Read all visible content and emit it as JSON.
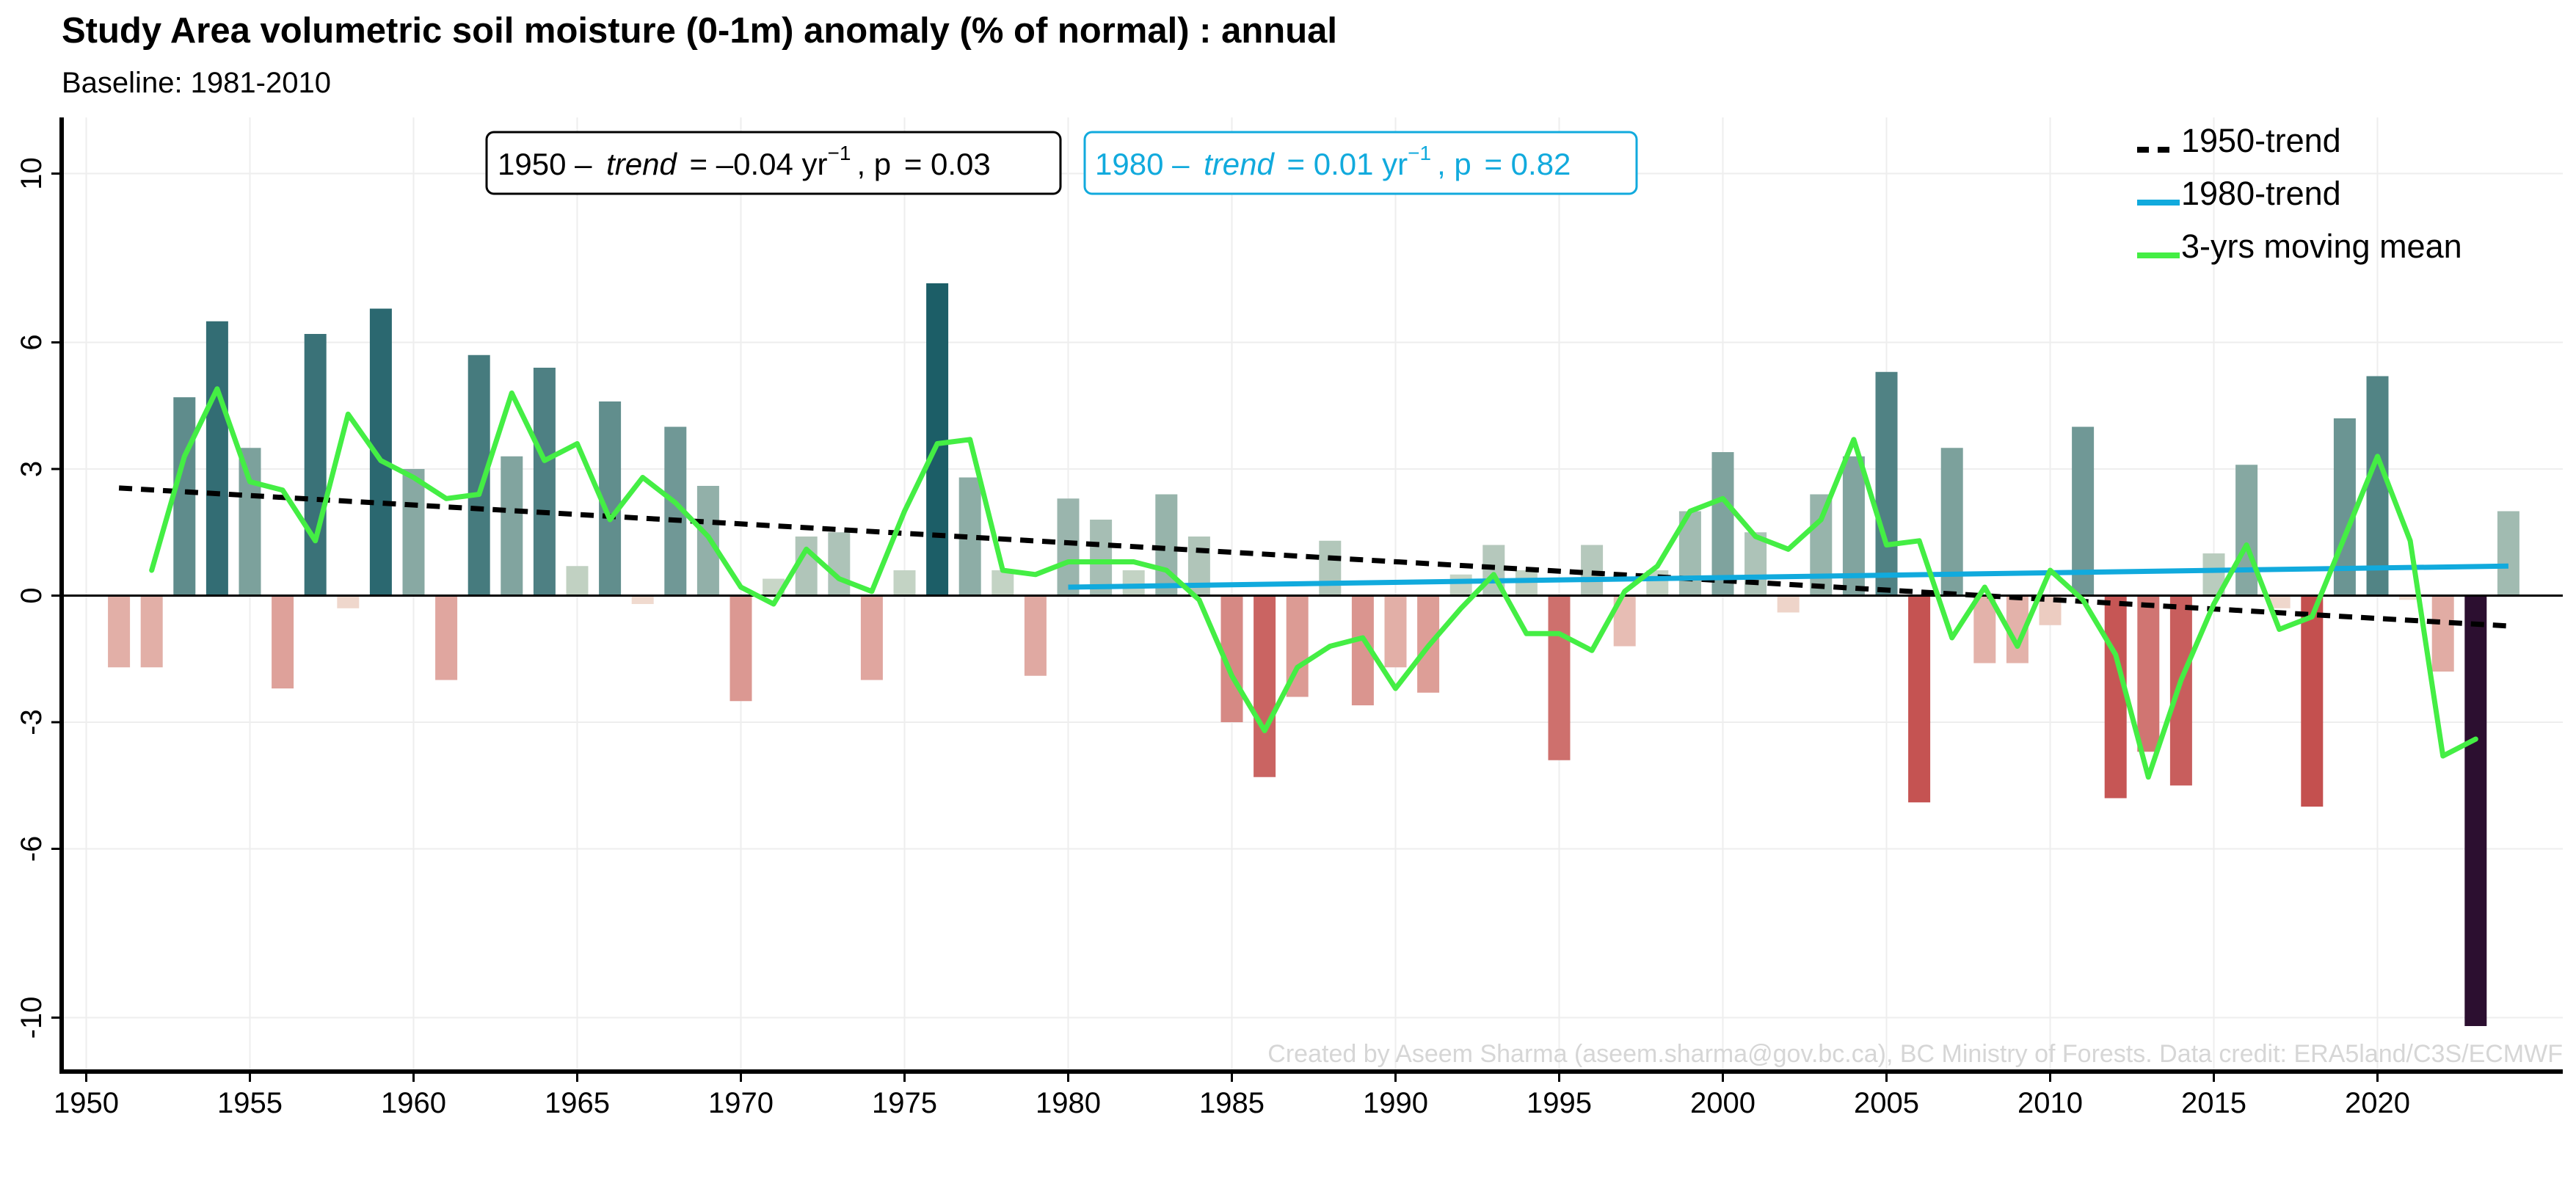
{
  "chart_data": {
    "type": "bar",
    "title": "Study Area volumetric soil moisture (0-1m) anomaly (% of normal) : annual",
    "subtitle": "Baseline: 1981-2010",
    "xlim": [
      1949,
      2025
    ],
    "ylim": [
      -11.2,
      11.2
    ],
    "x_ticks": [
      1950,
      1955,
      1960,
      1965,
      1970,
      1975,
      1980,
      1985,
      1990,
      1995,
      2000,
      2005,
      2010,
      2015,
      2020
    ],
    "y_ticks": [
      -10,
      -6,
      -3,
      0,
      3,
      6,
      10
    ],
    "grid": true,
    "years": [
      1951,
      1952,
      1953,
      1954,
      1955,
      1956,
      1957,
      1958,
      1959,
      1960,
      1961,
      1962,
      1963,
      1964,
      1965,
      1966,
      1967,
      1968,
      1969,
      1970,
      1971,
      1972,
      1973,
      1974,
      1975,
      1976,
      1977,
      1978,
      1979,
      1980,
      1981,
      1982,
      1983,
      1984,
      1985,
      1986,
      1987,
      1988,
      1989,
      1990,
      1991,
      1992,
      1993,
      1994,
      1995,
      1996,
      1997,
      1998,
      1999,
      2000,
      2001,
      2002,
      2003,
      2004,
      2005,
      2006,
      2007,
      2008,
      2009,
      2010,
      2011,
      2012,
      2013,
      2014,
      2015,
      2016,
      2017,
      2018,
      2019,
      2020,
      2021,
      2022,
      2023,
      2024
    ],
    "anomaly": [
      -1.7,
      -1.7,
      4.7,
      6.5,
      3.5,
      -2.2,
      6.2,
      -0.3,
      6.8,
      3.0,
      -2.0,
      5.7,
      3.3,
      5.4,
      0.7,
      4.6,
      -0.2,
      4.0,
      2.6,
      -2.5,
      0.4,
      1.4,
      1.5,
      -2.0,
      0.6,
      7.4,
      2.8,
      0.6,
      -1.9,
      2.3,
      1.8,
      0.6,
      2.4,
      1.4,
      -3.0,
      -4.3,
      -2.4,
      1.3,
      -2.6,
      -1.7,
      -2.3,
      0.5,
      1.2,
      0.6,
      -3.9,
      1.2,
      -1.2,
      0.6,
      2.0,
      3.4,
      1.5,
      -0.4,
      2.4,
      3.3,
      5.3,
      -4.9,
      3.5,
      -1.6,
      -1.6,
      -0.7,
      4.0,
      -4.8,
      -3.7,
      -4.5,
      1.0,
      3.1,
      -0.3,
      -5.0,
      4.2,
      5.2,
      -0.1,
      -1.8,
      -10.2,
      2.0
    ],
    "moving_mean": {
      "name": "3-yrs moving mean",
      "years": [
        1952,
        1953,
        1954,
        1955,
        1956,
        1957,
        1958,
        1959,
        1960,
        1961,
        1962,
        1963,
        1964,
        1965,
        1966,
        1967,
        1968,
        1969,
        1970,
        1971,
        1972,
        1973,
        1974,
        1975,
        1976,
        1977,
        1978,
        1979,
        1980,
        1981,
        1982,
        1983,
        1984,
        1985,
        1986,
        1987,
        1988,
        1989,
        1990,
        1991,
        1992,
        1993,
        1994,
        1995,
        1996,
        1997,
        1998,
        1999,
        2000,
        2001,
        2002,
        2003,
        2004,
        2005,
        2006,
        2007,
        2008,
        2009,
        2010,
        2011,
        2012,
        2013,
        2014,
        2015,
        2016,
        2017,
        2018,
        2019,
        2020,
        2021,
        2022,
        2023
      ],
      "values": [
        0.6,
        3.3,
        4.9,
        2.7,
        2.5,
        1.3,
        4.3,
        3.2,
        2.8,
        2.3,
        2.4,
        4.8,
        3.2,
        3.6,
        1.8,
        2.8,
        2.2,
        1.4,
        0.2,
        -0.2,
        1.1,
        0.4,
        0.1,
        2.0,
        3.6,
        3.7,
        0.6,
        0.5,
        0.8,
        0.8,
        0.8,
        0.6,
        -0.1,
        -1.9,
        -3.2,
        -1.7,
        -1.2,
        -1.0,
        -2.2,
        -1.2,
        -0.3,
        0.5,
        -0.9,
        -0.9,
        -1.3,
        0.1,
        0.7,
        2.0,
        2.3,
        1.4,
        1.1,
        1.8,
        3.7,
        1.2,
        1.3,
        -1.0,
        0.2,
        -1.2,
        0.6,
        -0.1,
        -1.4,
        -4.3,
        -2.0,
        -0.2,
        1.2,
        -0.8,
        -0.5,
        1.4,
        3.3,
        1.3,
        -3.8,
        -3.4
      ],
      "color": "#44ee44"
    },
    "trend_1950": {
      "name": "1950-trend",
      "start": [
        1951,
        2.55
      ],
      "end": [
        2024,
        -0.72
      ],
      "color": "#000000",
      "label_prefix": "1950 –",
      "trend_word": "trend",
      "trend_value": "= –0.04 yr",
      "trend_exp": "−1",
      "p_word": ", p",
      "p_value": "= 0.03"
    },
    "trend_1980": {
      "name": "1980-trend",
      "start": [
        1980,
        0.2
      ],
      "end": [
        2024,
        0.7
      ],
      "color": "#11aadd",
      "label_prefix": "1980 –",
      "trend_word": "trend",
      "trend_value": "= 0.01 yr",
      "trend_exp": "−1",
      "p_word": ", p",
      "p_value": "= 0.82"
    },
    "legend": {
      "placement": "top-right",
      "entries": [
        "1950-trend",
        "1980-trend",
        "3-yrs moving mean"
      ]
    },
    "credit": "Created by Aseem Sharma (aseem.sharma@gov.bc.ca), BC Ministry of Forests. Data credit: ERA5land/C3S/ECMWF",
    "colors": {
      "positive_low": "#d2ddcc",
      "positive_high": "#1a5c66",
      "negative_low": "#f2e0d4",
      "negative_high": "#c24a4a",
      "extreme": "#2c0f30"
    }
  }
}
